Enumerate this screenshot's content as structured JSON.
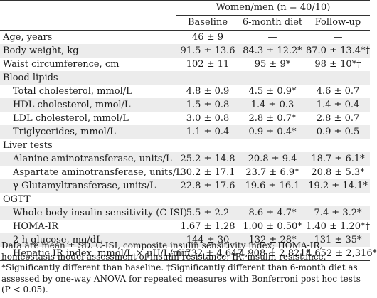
{
  "header": {
    "group_label": "Women/men (n = 40/10)",
    "columns": [
      "Baseline",
      "6-month diet",
      "Follow-up"
    ]
  },
  "rows": [
    {
      "label": "Age, years",
      "indent": false,
      "shade": false,
      "values": [
        "46 ± 9",
        "—",
        "—"
      ]
    },
    {
      "label": "Body weight, kg",
      "indent": false,
      "shade": true,
      "values": [
        "91.5 ± 13.6",
        "84.3 ± 12.2*",
        "87.0 ± 13.4*†"
      ]
    },
    {
      "label": "Waist circumference, cm",
      "indent": false,
      "shade": false,
      "values": [
        "102 ± 11",
        "95 ± 9*",
        "98 ± 10*†"
      ]
    },
    {
      "label": "Blood lipids",
      "indent": false,
      "shade": true,
      "values": [
        "",
        "",
        ""
      ]
    },
    {
      "label": "Total cholesterol, mmol/L",
      "indent": true,
      "shade": false,
      "values": [
        "4.8 ± 0.9",
        "4.5 ± 0.9*",
        "4.6 ± 0.7"
      ]
    },
    {
      "label": "HDL cholesterol, mmol/L",
      "indent": true,
      "shade": true,
      "values": [
        "1.5 ± 0.8",
        "1.4 ± 0.3",
        "1.4 ± 0.4"
      ]
    },
    {
      "label": "LDL cholesterol, mmol/L",
      "indent": true,
      "shade": false,
      "values": [
        "3.0 ± 0.8",
        "2.8 ± 0.7*",
        "2.8 ± 0.7"
      ]
    },
    {
      "label": "Triglycerides, mmol/L",
      "indent": true,
      "shade": true,
      "values": [
        "1.1 ± 0.4",
        "0.9 ± 0.4*",
        "0.9 ± 0.5"
      ]
    },
    {
      "label": "Liver tests",
      "indent": false,
      "shade": false,
      "values": [
        "",
        "",
        ""
      ]
    },
    {
      "label": "Alanine aminotransferase, units/L",
      "indent": true,
      "shade": true,
      "values": [
        "25.2 ± 14.8",
        "20.8 ± 9.4",
        "18.7 ± 6.1*"
      ]
    },
    {
      "label": "Aspartate aminotransferase, units/L",
      "indent": true,
      "shade": false,
      "values": [
        "30.2 ± 17.1",
        "23.7 ± 6.9*",
        "20.8 ± 5.3*"
      ]
    },
    {
      "label": "γ-Glutamyltransferase, units/L",
      "indent": true,
      "shade": true,
      "values": [
        "22.8 ± 17.6",
        "19.6 ± 16.1",
        "19.2 ± 14.1*"
      ]
    },
    {
      "label": "OGTT",
      "indent": false,
      "shade": false,
      "values": [
        "",
        "",
        ""
      ]
    },
    {
      "label": "Whole-body insulin sensitivity (C-ISI)",
      "indent": true,
      "shade": true,
      "values": [
        "5.5 ± 2.2",
        "8.6 ± 4.7*",
        "7.4 ± 3.2*"
      ]
    },
    {
      "label": "HOMA-IR",
      "indent": true,
      "shade": false,
      "values": [
        "1.67 ± 1.28",
        "1.00 ± 0.50*",
        "1.40 ± 1.20*†"
      ]
    },
    {
      "label": "2-h glucose, mg/dL",
      "indent": true,
      "shade": true,
      "values": [
        "144 ± 30",
        "132 ± 28*",
        "131 ± 35*"
      ]
    },
    {
      "label": "Hepatic IR index, mmol/L × μU/L/min",
      "indent": true,
      "shade": false,
      "values": [
        "6,732 ± 4,647",
        "4,908 ± 2,821*",
        "4,652 ± 2,316*"
      ]
    }
  ],
  "footnote": "Data are mean ± SD. C-ISI, composite insulin sensitivity index; HOMA-IR, homeostasis model assessment of insulin resistance; IR, insulin resistance. *Significantly different than baseline. †Significantly different than 6-month diet as assessed by one-way ANOVA for repeated measures with Bonferroni post hoc tests (P < 0.05)."
}
